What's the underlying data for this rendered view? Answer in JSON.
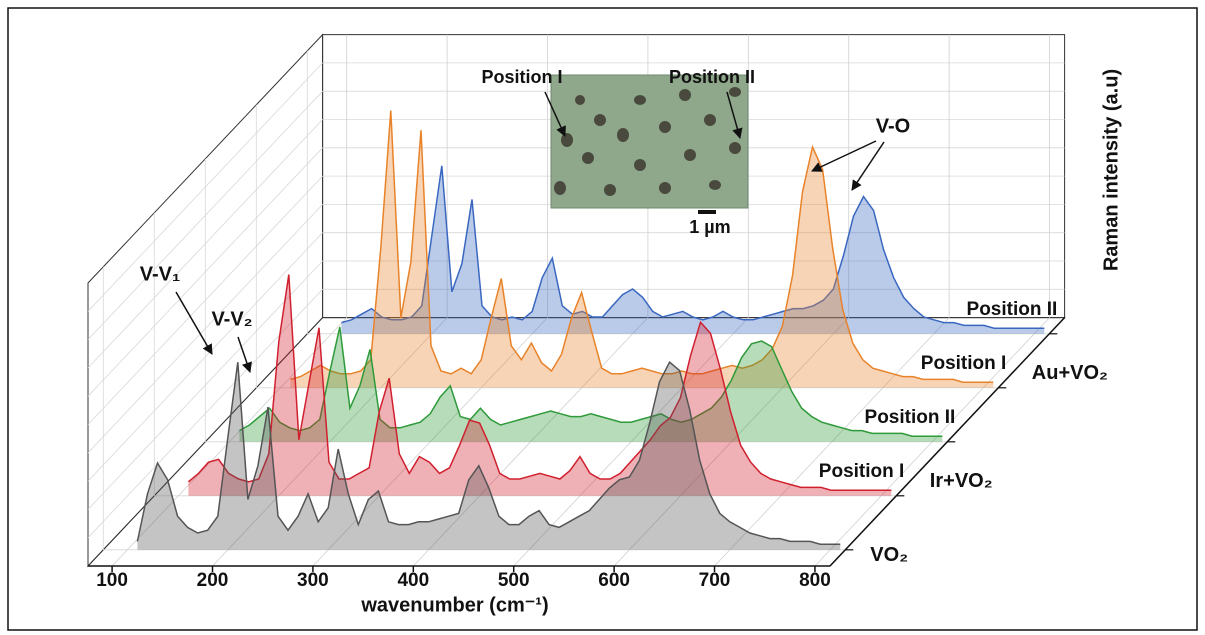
{
  "chart_data": {
    "type": "waterfall",
    "x_label": "wavenumber (cm⁻¹)",
    "y_label": "Raman intensity (a.u)",
    "xlim": [
      76,
      815
    ],
    "xticks": [
      100,
      200,
      300,
      400,
      500,
      600,
      700,
      800
    ],
    "ylim": [
      0,
      100
    ],
    "grid": true,
    "x": [
      110,
      120,
      130,
      140,
      150,
      160,
      170,
      180,
      190,
      200,
      210,
      220,
      230,
      240,
      250,
      260,
      270,
      280,
      290,
      300,
      310,
      320,
      330,
      340,
      350,
      360,
      370,
      380,
      390,
      400,
      410,
      420,
      430,
      440,
      450,
      460,
      470,
      480,
      490,
      500,
      510,
      520,
      530,
      540,
      550,
      560,
      570,
      580,
      590,
      600,
      610,
      620,
      630,
      640,
      650,
      660,
      670,
      680,
      690,
      700,
      710,
      720,
      730,
      740,
      750,
      760,
      770,
      780,
      790,
      800,
      810
    ],
    "series": [
      {
        "name": "VO₂",
        "color": "#555555",
        "values": [
          3,
          20,
          31,
          25,
          12,
          8,
          6,
          7,
          12,
          40,
          67,
          18,
          30,
          51,
          12,
          7,
          12,
          20,
          10,
          15,
          36,
          20,
          9,
          18,
          21,
          10,
          9,
          9,
          10,
          10,
          11,
          12,
          13,
          25,
          30,
          22,
          12,
          9,
          9,
          12,
          14,
          9,
          8,
          10,
          12,
          14,
          18,
          22,
          25,
          26,
          32,
          45,
          60,
          67,
          64,
          50,
          32,
          20,
          13,
          10,
          8,
          6,
          5,
          4,
          4,
          3,
          3,
          3,
          2,
          2,
          2
        ]
      },
      {
        "name": "Position I",
        "color": "#d0202e",
        "values": [
          5,
          8,
          12,
          13,
          8,
          6,
          5,
          6,
          15,
          55,
          79,
          20,
          40,
          60,
          12,
          6,
          6,
          8,
          10,
          30,
          42,
          15,
          8,
          14,
          12,
          8,
          10,
          18,
          27,
          26,
          18,
          8,
          6,
          6,
          7,
          8,
          7,
          6,
          9,
          14,
          8,
          6,
          6,
          8,
          12,
          16,
          20,
          25,
          28,
          35,
          50,
          62,
          58,
          45,
          30,
          18,
          12,
          8,
          6,
          5,
          4,
          3,
          3,
          3,
          2,
          2,
          2,
          2,
          2,
          2,
          2
        ]
      },
      {
        "name": "Position II",
        "color": "#2e9a3a",
        "values": [
          4,
          6,
          9,
          12,
          7,
          5,
          4,
          5,
          8,
          25,
          41,
          12,
          20,
          33,
          8,
          5,
          5,
          6,
          7,
          10,
          16,
          20,
          9,
          8,
          12,
          8,
          6,
          7,
          8,
          9,
          10,
          11,
          10,
          9,
          9,
          10,
          9,
          8,
          7,
          7,
          8,
          9,
          10,
          8,
          7,
          8,
          10,
          12,
          16,
          22,
          30,
          35,
          36,
          34,
          26,
          18,
          12,
          9,
          7,
          6,
          5,
          4,
          4,
          3,
          3,
          3,
          3,
          2,
          2,
          2,
          2
        ]
      },
      {
        "name": "Position I",
        "color": "#e8832a",
        "values": [
          3,
          4,
          6,
          8,
          6,
          5,
          5,
          6,
          10,
          50,
          99,
          25,
          45,
          92,
          15,
          6,
          5,
          7,
          5,
          10,
          25,
          39,
          15,
          10,
          16,
          9,
          6,
          12,
          25,
          34,
          20,
          7,
          5,
          5,
          6,
          7,
          6,
          5,
          5,
          6,
          5,
          5,
          6,
          7,
          8,
          7,
          8,
          10,
          14,
          22,
          40,
          70,
          86,
          78,
          50,
          28,
          16,
          10,
          7,
          6,
          5,
          4,
          4,
          3,
          3,
          3,
          3,
          2,
          2,
          2,
          2
        ]
      },
      {
        "name": "Position II",
        "color": "#3a68c0",
        "values": [
          4,
          5,
          7,
          9,
          6,
          5,
          5,
          6,
          10,
          35,
          60,
          15,
          25,
          48,
          10,
          6,
          5,
          6,
          5,
          8,
          20,
          27,
          10,
          7,
          8,
          6,
          6,
          10,
          14,
          16,
          13,
          8,
          6,
          7,
          8,
          6,
          5,
          6,
          8,
          6,
          5,
          5,
          6,
          7,
          8,
          9,
          9,
          10,
          12,
          16,
          28,
          42,
          49,
          44,
          30,
          20,
          13,
          9,
          6,
          5,
          4,
          4,
          3,
          3,
          3,
          2,
          2,
          2,
          2,
          2,
          2
        ]
      }
    ],
    "groups": [
      "Au+VO₂",
      "Ir+VO₂"
    ],
    "annotations": [
      "V-V₁",
      "V-V₂",
      "V-O"
    ],
    "inset": {
      "labels": [
        "Position I",
        "Position II"
      ],
      "scale_bar": "1 µm"
    }
  }
}
